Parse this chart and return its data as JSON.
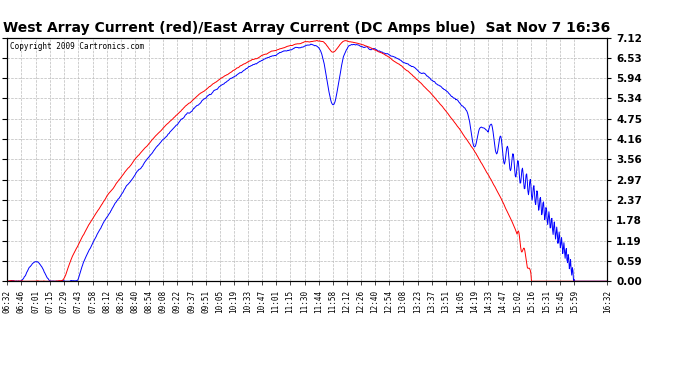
{
  "title": "West Array Current (red)/East Array Current (DC Amps blue)  Sat Nov 7 16:36",
  "copyright": "Copyright 2009 Cartronics.com",
  "ylabel_right_ticks": [
    0.0,
    0.59,
    1.19,
    1.78,
    2.37,
    2.97,
    3.56,
    4.16,
    4.75,
    5.34,
    5.94,
    6.53,
    7.12
  ],
  "ylim": [
    0.0,
    7.12
  ],
  "background_color": "#ffffff",
  "plot_bg_color": "#ffffff",
  "grid_color": "#bbbbbb",
  "red_color": "#ff0000",
  "blue_color": "#0000ff",
  "title_fontsize": 11,
  "x_tick_labels": [
    "06:32",
    "06:46",
    "07:01",
    "07:15",
    "07:29",
    "07:43",
    "07:58",
    "08:12",
    "08:26",
    "08:40",
    "08:54",
    "09:08",
    "09:22",
    "09:37",
    "09:51",
    "10:05",
    "10:19",
    "10:33",
    "10:47",
    "11:01",
    "11:15",
    "11:30",
    "11:44",
    "11:58",
    "12:12",
    "12:26",
    "12:40",
    "12:54",
    "13:08",
    "13:23",
    "13:37",
    "13:51",
    "14:05",
    "14:19",
    "14:33",
    "14:47",
    "15:02",
    "15:16",
    "15:31",
    "15:45",
    "15:59",
    "16:32"
  ]
}
